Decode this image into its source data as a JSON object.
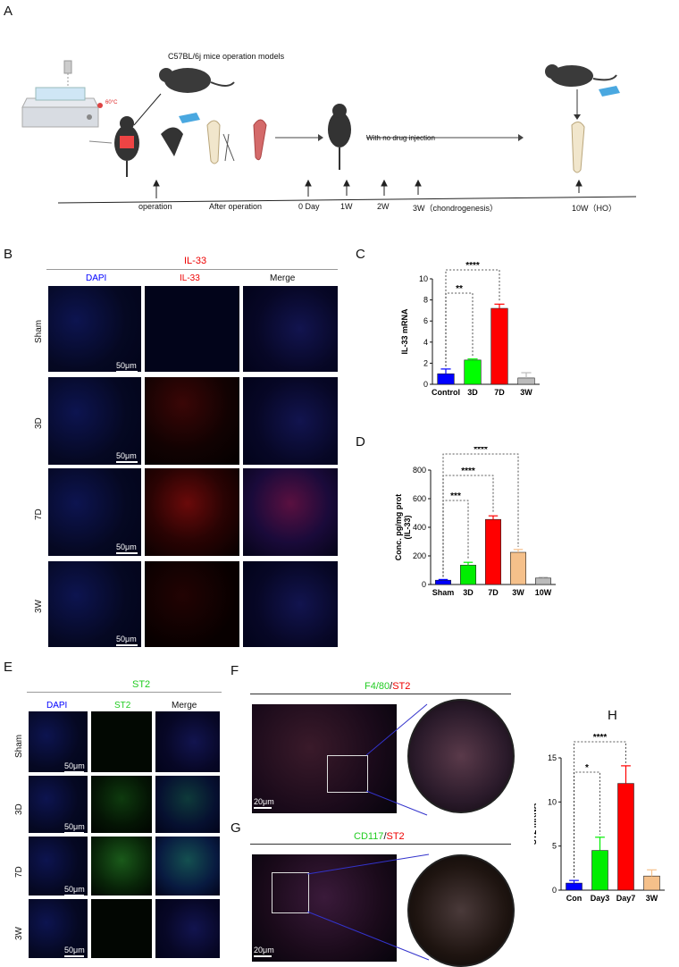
{
  "panelA": {
    "letter": "A",
    "model_label": "C57BL/6j mice operation models",
    "temp_label": "60°C",
    "no_drug_label": "With no drug injection",
    "timeline": [
      "operation",
      "After operation",
      "0 Day",
      "1W",
      "2W",
      "3W（chondrogenesis）",
      "10W（HO）"
    ]
  },
  "panelB": {
    "letter": "B",
    "title": "IL-33",
    "columns": [
      "DAPI",
      "IL-33",
      "Merge"
    ],
    "rows": [
      "Sham",
      "3D",
      "7D",
      "3W"
    ],
    "scale": "50μm"
  },
  "panelE": {
    "letter": "E",
    "title": "ST2",
    "columns": [
      "DAPI",
      "ST2",
      "Merge"
    ],
    "rows": [
      "Sham",
      "3D",
      "7D",
      "3W"
    ],
    "scale": "50μm"
  },
  "panelF": {
    "letter": "F",
    "title_a": "F4/80",
    "title_b": "ST2",
    "sep": "/",
    "scale": "20μm"
  },
  "panelG": {
    "letter": "G",
    "title_a": "CD117",
    "title_b": "ST2",
    "sep": "/",
    "scale": "20μm"
  },
  "colors": {
    "blue": "#0000ff",
    "green": "#00dd00",
    "red": "#ff0000",
    "orange": "#f5c08a",
    "grey": "#bbbbbb"
  },
  "chart_data": [
    {
      "panel": "C",
      "type": "bar",
      "categories": [
        "Control",
        "3D",
        "7D",
        "3W"
      ],
      "values": [
        1.0,
        2.3,
        7.2,
        0.6
      ],
      "errors": [
        0.45,
        0.1,
        0.4,
        0.5
      ],
      "colors": [
        "#0000ff",
        "#00ff00",
        "#ff0000",
        "#bbbbbb"
      ],
      "ylabel": "IL-33 mRNA",
      "ylim": [
        0,
        10
      ],
      "yticks": [
        0,
        2,
        4,
        6,
        8,
        10
      ],
      "significance": [
        {
          "from": 0,
          "to": 1,
          "label": "**"
        },
        {
          "from": 0,
          "to": 2,
          "label": "****"
        }
      ]
    },
    {
      "panel": "D",
      "type": "bar",
      "categories": [
        "Sham",
        "3D",
        "7D",
        "3W",
        "10W"
      ],
      "values": [
        30,
        135,
        455,
        225,
        45
      ],
      "errors": [
        5,
        20,
        25,
        20,
        5
      ],
      "colors": [
        "#0000ff",
        "#00ee00",
        "#ff0000",
        "#f5c08a",
        "#bbbbbb"
      ],
      "ylabel": "Conc. pg/mg prot\n(IL-33)",
      "ylim": [
        0,
        800
      ],
      "yticks": [
        0,
        200,
        400,
        600,
        800
      ],
      "significance": [
        {
          "from": 0,
          "to": 1,
          "label": "***"
        },
        {
          "from": 0,
          "to": 2,
          "label": "****"
        },
        {
          "from": 0,
          "to": 3,
          "label": "****"
        }
      ]
    },
    {
      "panel": "H",
      "type": "bar",
      "categories": [
        "Con",
        "Day3",
        "Day7",
        "3W"
      ],
      "values": [
        0.8,
        4.5,
        12.1,
        1.6
      ],
      "errors": [
        0.3,
        1.5,
        2.0,
        0.7
      ],
      "colors": [
        "#0000ff",
        "#00ee00",
        "#ff0000",
        "#f5c08a"
      ],
      "ylabel": "ST2 mRNA",
      "ylim": [
        0,
        15
      ],
      "yticks": [
        0,
        5,
        10,
        15
      ],
      "significance": [
        {
          "from": 0,
          "to": 1,
          "label": "*"
        },
        {
          "from": 0,
          "to": 2,
          "label": "****"
        }
      ]
    }
  ]
}
